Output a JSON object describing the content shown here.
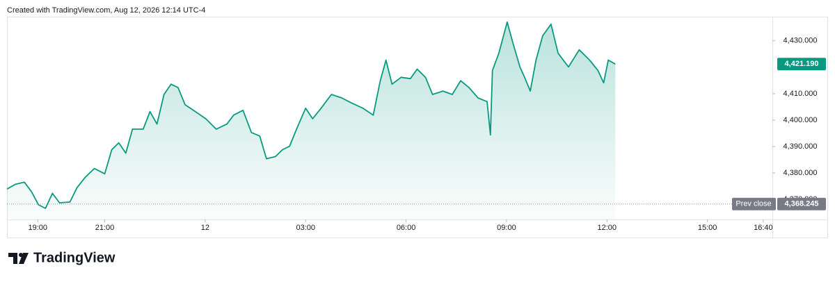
{
  "header": "Created with TradingView.com, Aug 12, 2026 12:14 UTC-4",
  "footer": {
    "brand": "TradingView"
  },
  "chart_data": {
    "type": "area",
    "color": "#089981",
    "x": [
      18.08,
      18.33,
      18.6,
      18.81,
      19.02,
      19.23,
      19.44,
      19.65,
      19.96,
      20.17,
      20.42,
      20.69,
      21.0,
      21.21,
      21.42,
      21.63,
      21.83,
      22.15,
      22.35,
      22.56,
      22.77,
      22.98,
      23.19,
      23.4,
      23.71,
      24.02,
      24.33,
      24.65,
      24.85,
      25.13,
      25.38,
      25.63,
      25.83,
      26.1,
      26.31,
      26.52,
      26.73,
      27.0,
      27.21,
      27.46,
      27.77,
      28.08,
      28.4,
      28.71,
      29.02,
      29.23,
      29.4,
      29.58,
      29.85,
      30.13,
      30.33,
      30.58,
      30.79,
      31.1,
      31.38,
      31.63,
      31.88,
      32.15,
      32.42,
      32.52,
      32.58,
      32.77,
      33.02,
      33.19,
      33.4,
      33.54,
      33.71,
      33.88,
      34.08,
      34.33,
      34.54,
      34.85,
      35.17,
      35.48,
      35.73,
      35.9,
      36.04,
      36.25
    ],
    "values": [
      4373.9,
      4375.7,
      4376.5,
      4373,
      4368,
      4366.6,
      4372.3,
      4368.7,
      4369,
      4374.4,
      4378.4,
      4381.7,
      4379.7,
      4388.8,
      4391.4,
      4387.5,
      4396.6,
      4396.6,
      4403.2,
      4398.5,
      4409.7,
      4413.6,
      4412.3,
      4405.8,
      4403.2,
      4400.5,
      4396.6,
      4398.5,
      4401.9,
      4403.7,
      4395.3,
      4394,
      4385.4,
      4386.2,
      4388.8,
      4390.1,
      4396.6,
      4404.5,
      4400.5,
      4404.5,
      4409.7,
      4408.4,
      4406.3,
      4404.5,
      4401.9,
      4414.9,
      4422.7,
      4413.6,
      4416.2,
      4415.7,
      4419.3,
      4416.2,
      4409.7,
      4411,
      4409.7,
      4414.9,
      4412.3,
      4408.4,
      4407,
      4394.4,
      4418.8,
      4425.3,
      4437.1,
      4429.2,
      4420.1,
      4416.2,
      4411,
      4422.7,
      4431.9,
      4436.3,
      4425.3,
      4420.1,
      4426.6,
      4422.7,
      4418.8,
      4414.1,
      4422.7,
      4421.19
    ],
    "xlim": [
      18.08,
      40.94
    ],
    "ylim": [
      4362.4,
      4441.5
    ],
    "xticks": [
      {
        "value": 19,
        "label": "19:00"
      },
      {
        "value": 21,
        "label": "21:00"
      },
      {
        "value": 24,
        "label": "12"
      },
      {
        "value": 27,
        "label": "03:00"
      },
      {
        "value": 30,
        "label": "06:00"
      },
      {
        "value": 33,
        "label": "09:00"
      },
      {
        "value": 36,
        "label": "12:00"
      },
      {
        "value": 39,
        "label": "15:00"
      },
      {
        "value": 40.667,
        "label": "16:40"
      }
    ],
    "yticks": [
      {
        "value": 4370,
        "label": "4,370.000"
      },
      {
        "value": 4380,
        "label": "4,380.000"
      },
      {
        "value": 4390,
        "label": "4,390.000"
      },
      {
        "value": 4400,
        "label": "4,400.000"
      },
      {
        "value": 4410,
        "label": "4,410.000"
      },
      {
        "value": 4430,
        "label": "4,430.000"
      }
    ],
    "last_price": {
      "value": 4421.19,
      "label": "4,421.190"
    },
    "prev_close": {
      "name": "Prev close",
      "value": 4368.245,
      "label": "4,368.245"
    }
  }
}
